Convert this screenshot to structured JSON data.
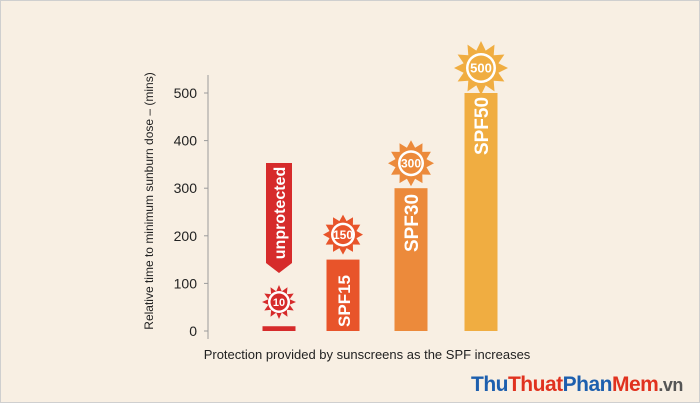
{
  "chart_data": {
    "type": "bar",
    "categories": [
      "unprotected",
      "SPF15",
      "SPF30",
      "SPF50"
    ],
    "values": [
      10,
      150,
      300,
      500
    ],
    "value_labels": [
      "10",
      "150",
      "300",
      "500"
    ],
    "ylabel": "Relative time to minimum sunburn dose – (mins)",
    "xlabel": "Protection provided by sunscreens as the SPF increases",
    "ylim": [
      0,
      500
    ],
    "yticks": [
      0,
      100,
      200,
      300,
      400,
      500
    ],
    "grid": false,
    "colors": {
      "unprotected": "#d62b2b",
      "SPF15": "#e8542a",
      "SPF30": "#ec8a3b",
      "SPF50": "#f0ad41",
      "sun_unprotected": "#d62b2b",
      "sun_SPF15": "#e8542a",
      "sun_SPF30": "#ec8a3b",
      "sun_SPF50": "#f0ad41",
      "axis": "#9b9b9b",
      "text": "#222222"
    }
  },
  "watermark": {
    "part1": "Thu",
    "part2": "Thuat",
    "part3": "Phan",
    "part4": "Mem",
    "part5": ".vn"
  }
}
